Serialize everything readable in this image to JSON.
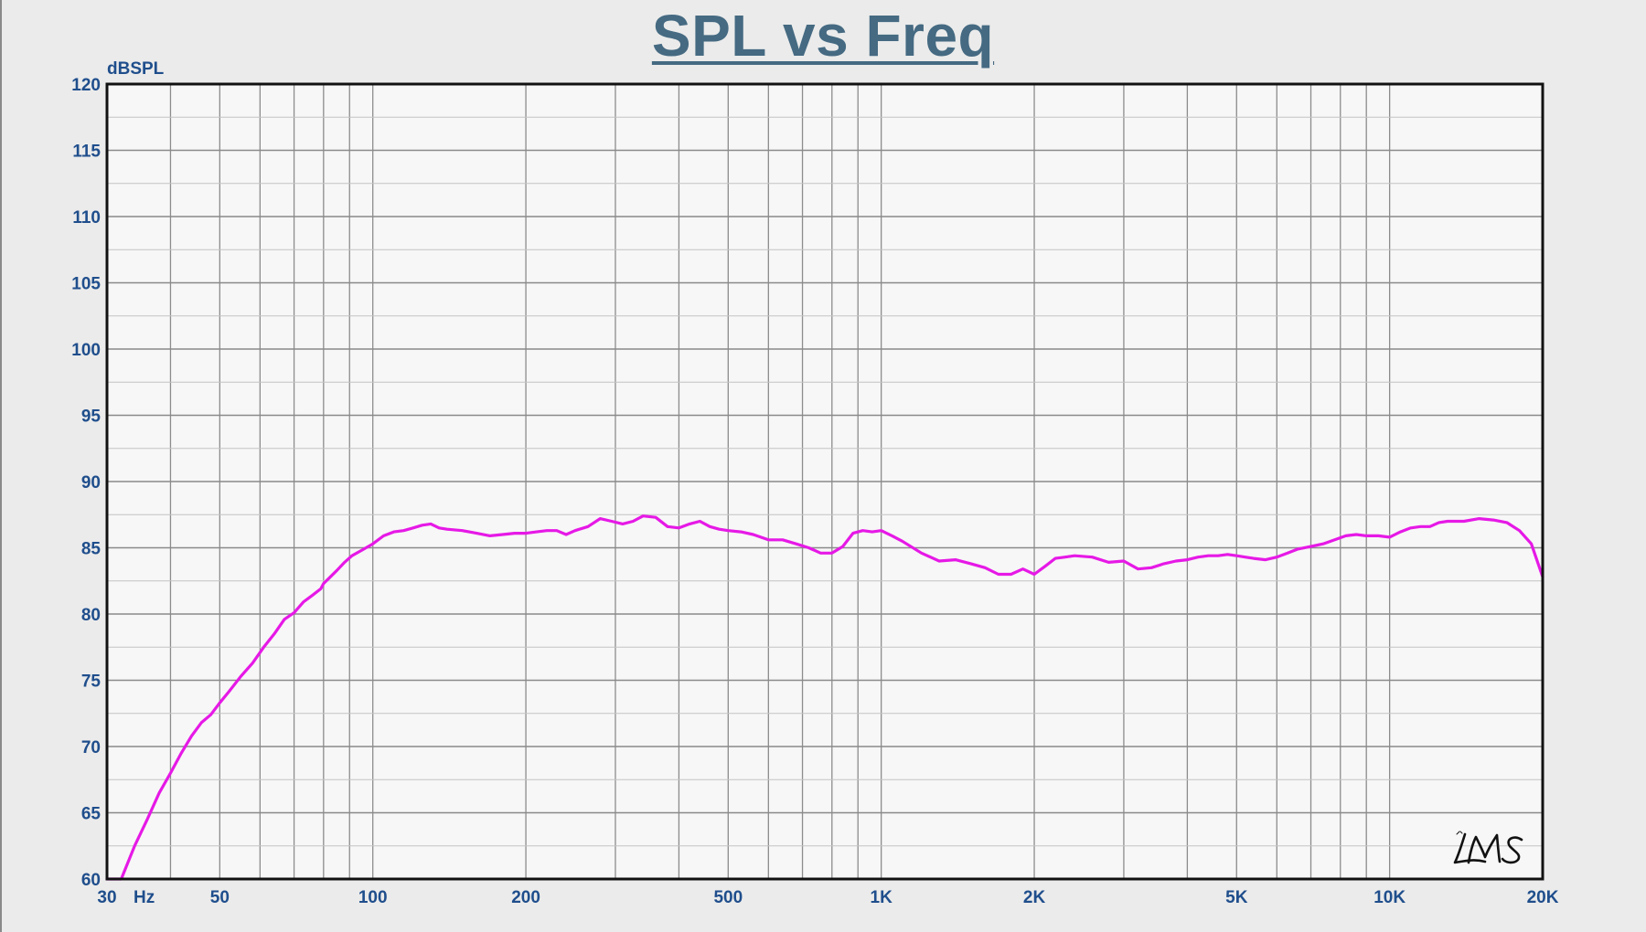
{
  "page": {
    "title": "SPL vs Freq"
  },
  "colors": {
    "curve": "#e619e6",
    "grid": "#8c8c8c",
    "frame": "#111111",
    "plot_background": "#f7f7f7",
    "label_text": "#1f4e8c",
    "title_text": "#456a82"
  },
  "watermark": {
    "text": "LMS",
    "icon": "lms-logo-icon"
  },
  "chart_data": {
    "type": "line",
    "title": "SPL vs Freq",
    "xlabel": "Hz",
    "ylabel": "dBSPL",
    "xscale": "log",
    "xlim": [
      30,
      20000
    ],
    "ylim": [
      60,
      120
    ],
    "grid": true,
    "x_ticks": [
      {
        "value": 30,
        "label": "30"
      },
      {
        "value": 50,
        "label": "50"
      },
      {
        "value": 100,
        "label": "100"
      },
      {
        "value": 200,
        "label": "200"
      },
      {
        "value": 500,
        "label": "500"
      },
      {
        "value": 1000,
        "label": "1K"
      },
      {
        "value": 2000,
        "label": "2K"
      },
      {
        "value": 5000,
        "label": "5K"
      },
      {
        "value": 10000,
        "label": "10K"
      },
      {
        "value": 20000,
        "label": "20K"
      }
    ],
    "y_ticks": [
      {
        "value": 60,
        "label": "60"
      },
      {
        "value": 65,
        "label": "65"
      },
      {
        "value": 70,
        "label": "70"
      },
      {
        "value": 75,
        "label": "75"
      },
      {
        "value": 80,
        "label": "80"
      },
      {
        "value": 85,
        "label": "85"
      },
      {
        "value": 90,
        "label": "90"
      },
      {
        "value": 95,
        "label": "95"
      },
      {
        "value": 100,
        "label": "100"
      },
      {
        "value": 105,
        "label": "105"
      },
      {
        "value": 110,
        "label": "110"
      },
      {
        "value": 115,
        "label": "115"
      },
      {
        "value": 120,
        "label": "120"
      }
    ],
    "series": [
      {
        "color": "#e619e6",
        "x": [
          30,
          32,
          34,
          36,
          38,
          40,
          42,
          44,
          46,
          48,
          50,
          52,
          55,
          58,
          61,
          64,
          67,
          70,
          73,
          76,
          79,
          80,
          82,
          85,
          88,
          91,
          95,
          100,
          105,
          110,
          115,
          120,
          125,
          130,
          135,
          140,
          150,
          160,
          170,
          180,
          190,
          200,
          210,
          220,
          230,
          240,
          250,
          265,
          280,
          295,
          310,
          325,
          340,
          360,
          380,
          400,
          420,
          440,
          460,
          480,
          500,
          530,
          560,
          600,
          640,
          680,
          720,
          760,
          800,
          840,
          880,
          920,
          960,
          1000,
          1050,
          1100,
          1200,
          1300,
          1400,
          1500,
          1600,
          1700,
          1800,
          1900,
          2000,
          2100,
          2200,
          2300,
          2400,
          2600,
          2800,
          3000,
          3200,
          3400,
          3600,
          3800,
          4000,
          4200,
          4400,
          4600,
          4800,
          5000,
          5200,
          5400,
          5700,
          6000,
          6300,
          6600,
          7000,
          7400,
          7800,
          8200,
          8600,
          9000,
          9500,
          10000,
          10500,
          11000,
          11500,
          12000,
          12500,
          13000,
          14000,
          15000,
          16000,
          17000,
          18000,
          19000,
          20000
        ],
        "y": [
          60.0,
          60.0,
          62.5,
          64.5,
          66.5,
          68.0,
          69.5,
          70.8,
          71.8,
          72.4,
          73.3,
          74.1,
          75.3,
          76.3,
          77.5,
          78.5,
          79.6,
          80.1,
          80.9,
          81.4,
          81.9,
          82.3,
          82.7,
          83.3,
          83.9,
          84.4,
          84.8,
          85.3,
          85.9,
          86.2,
          86.3,
          86.5,
          86.7,
          86.8,
          86.5,
          86.4,
          86.3,
          86.1,
          85.9,
          86.0,
          86.1,
          86.1,
          86.2,
          86.3,
          86.3,
          86.0,
          86.3,
          86.6,
          87.2,
          87.0,
          86.8,
          87.0,
          87.4,
          87.3,
          86.6,
          86.5,
          86.8,
          87.0,
          86.6,
          86.4,
          86.3,
          86.2,
          86.0,
          85.6,
          85.6,
          85.3,
          85.0,
          84.6,
          84.6,
          85.1,
          86.1,
          86.3,
          86.2,
          86.3,
          85.9,
          85.5,
          84.6,
          84.0,
          84.1,
          83.8,
          83.5,
          83.0,
          83.0,
          83.4,
          83.0,
          83.6,
          84.2,
          84.3,
          84.4,
          84.3,
          83.9,
          84.0,
          83.4,
          83.5,
          83.8,
          84.0,
          84.1,
          84.3,
          84.4,
          84.4,
          84.5,
          84.4,
          84.3,
          84.2,
          84.1,
          84.3,
          84.6,
          84.9,
          85.1,
          85.3,
          85.6,
          85.9,
          86.0,
          85.9,
          85.9,
          85.8,
          86.2,
          86.5,
          86.6,
          86.6,
          86.9,
          87.0,
          87.0,
          87.2,
          87.1,
          86.9,
          86.3,
          85.3,
          82.8
        ]
      }
    ]
  }
}
